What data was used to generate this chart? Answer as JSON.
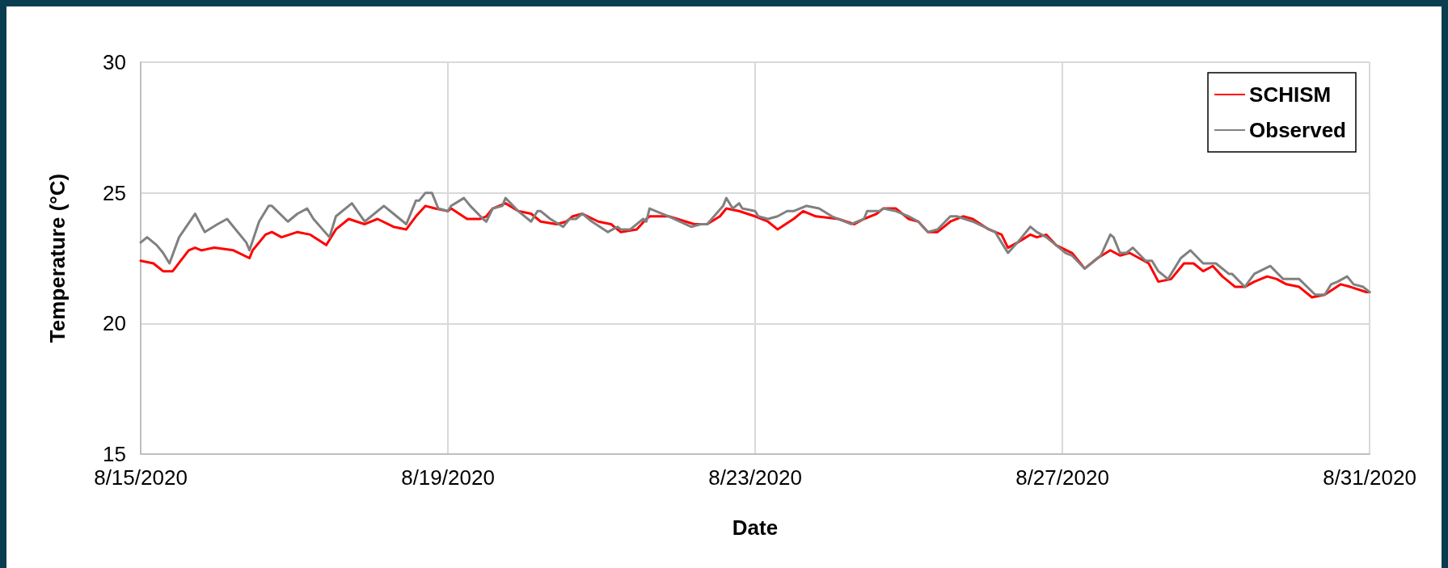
{
  "chart_data": {
    "type": "line",
    "xlabel": "Date",
    "ylabel": "Temperature (°C)",
    "xlim": [
      "2020-08-15T00:00",
      "2020-08-31T00:00"
    ],
    "xticks": [
      {
        "value": "2020-08-15T00:00",
        "label": "8/15/2020"
      },
      {
        "value": "2020-08-19T00:00",
        "label": "8/19/2020"
      },
      {
        "value": "2020-08-23T00:00",
        "label": "8/23/2020"
      },
      {
        "value": "2020-08-27T00:00",
        "label": "8/27/2020"
      },
      {
        "value": "2020-08-31T00:00",
        "label": "8/31/2020"
      }
    ],
    "ylim": [
      15,
      30
    ],
    "yticks": [
      15,
      20,
      25,
      30
    ],
    "grid": true,
    "legend": "top right",
    "marker": "none",
    "line_style": "solid",
    "series": [
      {
        "name": "SCHISM",
        "color": "#ff0000",
        "x": [
          "2020-08-15T00:00",
          "2020-08-15T04:00",
          "2020-08-15T07:00",
          "2020-08-15T10:00",
          "2020-08-15T15:00",
          "2020-08-15T17:00",
          "2020-08-15T19:00",
          "2020-08-15T23:00",
          "2020-08-16T05:00",
          "2020-08-16T10:00",
          "2020-08-16T11:00",
          "2020-08-16T15:00",
          "2020-08-16T17:00",
          "2020-08-16T20:00",
          "2020-08-17T01:00",
          "2020-08-17T05:00",
          "2020-08-17T10:00",
          "2020-08-17T13:00",
          "2020-08-17T17:00",
          "2020-08-17T22:00",
          "2020-08-18T02:00",
          "2020-08-18T07:00",
          "2020-08-18T11:00",
          "2020-08-18T14:00",
          "2020-08-18T17:00",
          "2020-08-18T20:00",
          "2020-08-19T00:00",
          "2020-08-19T01:00",
          "2020-08-19T06:00",
          "2020-08-19T10:00",
          "2020-08-19T12:00",
          "2020-08-19T14:00",
          "2020-08-19T18:00",
          "2020-08-19T22:00",
          "2020-08-20T02:00",
          "2020-08-20T05:00",
          "2020-08-20T10:00",
          "2020-08-20T13:00",
          "2020-08-20T15:00",
          "2020-08-20T18:00",
          "2020-08-20T23:00",
          "2020-08-21T03:00",
          "2020-08-21T06:00",
          "2020-08-21T11:00",
          "2020-08-21T14:00",
          "2020-08-21T15:00",
          "2020-08-21T21:00",
          "2020-08-22T05:00",
          "2020-08-22T09:00",
          "2020-08-22T13:00",
          "2020-08-22T15:00",
          "2020-08-22T19:00",
          "2020-08-23T00:00",
          "2020-08-23T04:00",
          "2020-08-23T07:00",
          "2020-08-23T12:00",
          "2020-08-23T15:00",
          "2020-08-23T19:00",
          "2020-08-24T02:00",
          "2020-08-24T07:00",
          "2020-08-24T10:00",
          "2020-08-24T14:00",
          "2020-08-24T16:00",
          "2020-08-24T20:00",
          "2020-08-25T00:00",
          "2020-08-25T03:00",
          "2020-08-25T06:00",
          "2020-08-25T09:00",
          "2020-08-25T13:00",
          "2020-08-25T17:00",
          "2020-08-25T20:00",
          "2020-08-26T01:00",
          "2020-08-26T05:00",
          "2020-08-26T07:00",
          "2020-08-26T10:00",
          "2020-08-26T14:00",
          "2020-08-26T16:00",
          "2020-08-26T19:00",
          "2020-08-26T22:00",
          "2020-08-27T03:00",
          "2020-08-27T07:00",
          "2020-08-27T11:00",
          "2020-08-27T15:00",
          "2020-08-27T18:00",
          "2020-08-27T21:00",
          "2020-08-28T03:00",
          "2020-08-28T06:00",
          "2020-08-28T10:00",
          "2020-08-28T14:00",
          "2020-08-28T17:00",
          "2020-08-28T20:00",
          "2020-08-28T23:00",
          "2020-08-29T02:00",
          "2020-08-29T06:00",
          "2020-08-29T09:00",
          "2020-08-29T12:00",
          "2020-08-29T16:00",
          "2020-08-29T19:00",
          "2020-08-29T22:00",
          "2020-08-30T02:00",
          "2020-08-30T06:00",
          "2020-08-30T10:00",
          "2020-08-30T15:00",
          "2020-08-30T18:00",
          "2020-08-30T23:00",
          "2020-08-31T00:00"
        ],
        "values": [
          22.4,
          22.3,
          22.0,
          22.0,
          22.8,
          22.9,
          22.8,
          22.9,
          22.8,
          22.5,
          22.8,
          23.4,
          23.5,
          23.3,
          23.5,
          23.4,
          23.0,
          23.6,
          24.0,
          23.8,
          24.0,
          23.7,
          23.6,
          24.1,
          24.5,
          24.4,
          24.3,
          24.4,
          24.0,
          24.0,
          24.1,
          24.4,
          24.6,
          24.3,
          24.2,
          23.9,
          23.8,
          23.9,
          24.1,
          24.2,
          23.9,
          23.8,
          23.5,
          23.6,
          24.0,
          24.1,
          24.1,
          23.8,
          23.8,
          24.1,
          24.4,
          24.3,
          24.1,
          23.9,
          23.6,
          24.0,
          24.3,
          24.1,
          24.0,
          23.8,
          24.0,
          24.2,
          24.4,
          24.4,
          24.0,
          23.9,
          23.5,
          23.5,
          23.9,
          24.1,
          24.0,
          23.6,
          23.4,
          22.9,
          23.1,
          23.4,
          23.3,
          23.4,
          23.0,
          22.7,
          22.1,
          22.5,
          22.8,
          22.6,
          22.7,
          22.3,
          21.6,
          21.7,
          22.3,
          22.3,
          22.0,
          22.2,
          21.8,
          21.4,
          21.4,
          21.6,
          21.8,
          21.7,
          21.5,
          21.4,
          21.0,
          21.1,
          21.5,
          21.4,
          21.2,
          21.2
        ]
      },
      {
        "name": "Observed",
        "color": "#808080",
        "x": [
          "2020-08-15T00:00",
          "2020-08-15T02:00",
          "2020-08-15T05:00",
          "2020-08-15T07:00",
          "2020-08-15T09:00",
          "2020-08-15T12:00",
          "2020-08-15T17:00",
          "2020-08-15T20:00",
          "2020-08-16T00:00",
          "2020-08-16T03:00",
          "2020-08-16T05:00",
          "2020-08-16T09:00",
          "2020-08-16T10:00",
          "2020-08-16T13:00",
          "2020-08-16T16:00",
          "2020-08-16T17:00",
          "2020-08-16T22:00",
          "2020-08-17T01:00",
          "2020-08-17T04:00",
          "2020-08-17T06:00",
          "2020-08-17T11:00",
          "2020-08-17T13:00",
          "2020-08-17T18:00",
          "2020-08-17T22:00",
          "2020-08-18T04:00",
          "2020-08-18T08:00",
          "2020-08-18T11:00",
          "2020-08-18T14:00",
          "2020-08-18T15:00",
          "2020-08-18T17:00",
          "2020-08-18T19:00",
          "2020-08-18T21:00",
          "2020-08-19T00:00",
          "2020-08-19T01:00",
          "2020-08-19T05:00",
          "2020-08-19T07:00",
          "2020-08-19T11:00",
          "2020-08-19T12:00",
          "2020-08-19T14:00",
          "2020-08-19T17:00",
          "2020-08-19T18:00",
          "2020-08-19T22:00",
          "2020-08-20T02:00",
          "2020-08-20T04:00",
          "2020-08-20T05:00",
          "2020-08-20T08:00",
          "2020-08-20T12:00",
          "2020-08-20T14:00",
          "2020-08-20T16:00",
          "2020-08-20T18:00",
          "2020-08-20T21:00",
          "2020-08-21T02:00",
          "2020-08-21T05:00",
          "2020-08-21T06:00",
          "2020-08-21T09:00",
          "2020-08-21T13:00",
          "2020-08-21T14:00",
          "2020-08-21T15:00",
          "2020-08-21T17:00",
          "2020-08-21T19:00",
          "2020-08-21T21:00",
          "2020-08-22T04:00",
          "2020-08-22T07:00",
          "2020-08-22T09:00",
          "2020-08-22T14:00",
          "2020-08-22T15:00",
          "2020-08-22T17:00",
          "2020-08-22T19:00",
          "2020-08-22T20:00",
          "2020-08-23T00:00",
          "2020-08-23T01:00",
          "2020-08-23T04:00",
          "2020-08-23T07:00",
          "2020-08-23T10:00",
          "2020-08-23T12:00",
          "2020-08-23T16:00",
          "2020-08-23T20:00",
          "2020-08-24T00:00",
          "2020-08-24T06:00",
          "2020-08-24T10:00",
          "2020-08-24T11:00",
          "2020-08-24T15:00",
          "2020-08-24T16:00",
          "2020-08-24T20:00",
          "2020-08-25T00:00",
          "2020-08-25T03:00",
          "2020-08-25T06:00",
          "2020-08-25T09:00",
          "2020-08-25T13:00",
          "2020-08-25T15:00",
          "2020-08-25T20:00",
          "2020-08-26T03:00",
          "2020-08-26T05:00",
          "2020-08-26T07:00",
          "2020-08-26T10:00",
          "2020-08-26T14:00",
          "2020-08-26T16:00",
          "2020-08-26T19:00",
          "2020-08-26T22:00",
          "2020-08-27T01:00",
          "2020-08-27T03:00",
          "2020-08-27T07:00",
          "2020-08-27T12:00",
          "2020-08-27T15:00",
          "2020-08-27T16:00",
          "2020-08-27T18:00",
          "2020-08-27T20:00",
          "2020-08-27T22:00",
          "2020-08-28T02:00",
          "2020-08-28T04:00",
          "2020-08-28T06:00",
          "2020-08-28T09:00",
          "2020-08-28T13:00",
          "2020-08-28T16:00",
          "2020-08-28T20:00",
          "2020-08-29T00:00",
          "2020-08-29T04:00",
          "2020-08-29T05:00",
          "2020-08-29T09:00",
          "2020-08-29T12:00",
          "2020-08-29T17:00",
          "2020-08-29T21:00",
          "2020-08-30T02:00",
          "2020-08-30T07:00",
          "2020-08-30T10:00",
          "2020-08-30T12:00",
          "2020-08-30T14:00",
          "2020-08-30T17:00",
          "2020-08-30T19:00",
          "2020-08-30T22:00",
          "2020-08-31T00:00"
        ],
        "values": [
          23.1,
          23.3,
          23.0,
          22.7,
          22.3,
          23.3,
          24.2,
          23.5,
          23.8,
          24.0,
          23.7,
          23.1,
          22.8,
          23.9,
          24.5,
          24.5,
          23.9,
          24.2,
          24.4,
          24.0,
          23.3,
          24.1,
          24.6,
          23.9,
          24.5,
          24.1,
          23.8,
          24.7,
          24.7,
          25.0,
          25.0,
          24.4,
          24.3,
          24.5,
          24.8,
          24.5,
          24.0,
          23.9,
          24.4,
          24.5,
          24.8,
          24.3,
          23.9,
          24.3,
          24.3,
          24.0,
          23.7,
          24.0,
          24.0,
          24.2,
          23.9,
          23.5,
          23.7,
          23.6,
          23.6,
          24.0,
          23.9,
          24.4,
          24.3,
          24.2,
          24.1,
          23.7,
          23.8,
          23.8,
          24.5,
          24.8,
          24.4,
          24.6,
          24.4,
          24.3,
          24.1,
          24.0,
          24.1,
          24.3,
          24.3,
          24.5,
          24.4,
          24.1,
          23.8,
          24.0,
          24.3,
          24.3,
          24.4,
          24.3,
          24.1,
          23.9,
          23.5,
          23.6,
          24.1,
          24.1,
          23.9,
          23.5,
          23.1,
          22.7,
          23.1,
          23.7,
          23.5,
          23.3,
          23.0,
          22.7,
          22.6,
          22.1,
          22.6,
          23.4,
          23.3,
          22.7,
          22.7,
          22.9,
          22.4,
          22.4,
          22.0,
          21.7,
          22.5,
          22.8,
          22.3,
          22.3,
          21.9,
          21.9,
          21.4,
          21.9,
          22.2,
          21.7,
          21.7,
          21.1,
          21.1,
          21.5,
          21.6,
          21.8,
          21.5,
          21.4,
          21.2
        ]
      }
    ]
  }
}
